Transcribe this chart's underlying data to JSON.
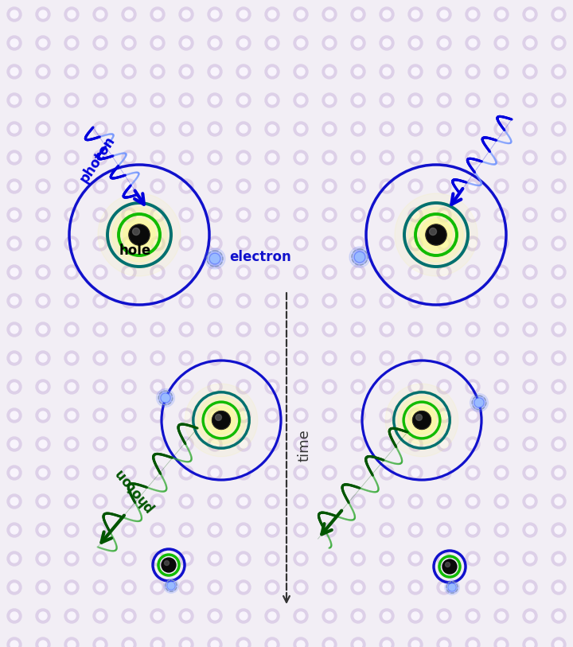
{
  "bg_color": "#f2eef5",
  "dot_color_outer": "#ddd0e8",
  "dot_color_inner": "#f8f4fc",
  "blue_photon_color": "#0000dd",
  "blue_photon_light": "#7799ff",
  "green_photon_color": "#005500",
  "green_photon_light": "#33aa33",
  "teal_ring_color": "#007070",
  "green_ring_color": "#11bb00",
  "orbit_blue": "#1111cc",
  "electron_blue": "#5577ff",
  "hole_dark": "#1a1a1a",
  "hole_mid": "#444444",
  "time_color": "#333333",
  "labels": {
    "hole": "hole",
    "electron": "electron",
    "photon": "photon",
    "time": "time"
  }
}
